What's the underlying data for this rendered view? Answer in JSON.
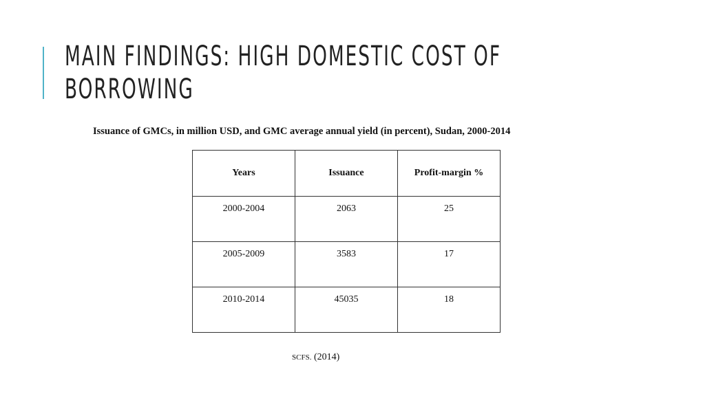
{
  "slide": {
    "title_line1": "MAIN FINDINGS: HIGH DOMESTIC COST OF",
    "title_line2": "BORROWING",
    "accent_color": "#4fb3c8"
  },
  "caption": "Issuance of GMCs, in million USD, and GMC average annual yield (in percent), Sudan, 2000-2014",
  "table": {
    "headers": [
      "Years",
      "Issuance",
      "Profit-margin %"
    ],
    "rows": [
      [
        "2000-2004",
        "2063",
        "25"
      ],
      [
        "2005-2009",
        "3583",
        "17"
      ],
      [
        "2010-2014",
        "45035",
        "18"
      ]
    ]
  },
  "source": {
    "label": "SCFS.",
    "year": "(2014)"
  }
}
